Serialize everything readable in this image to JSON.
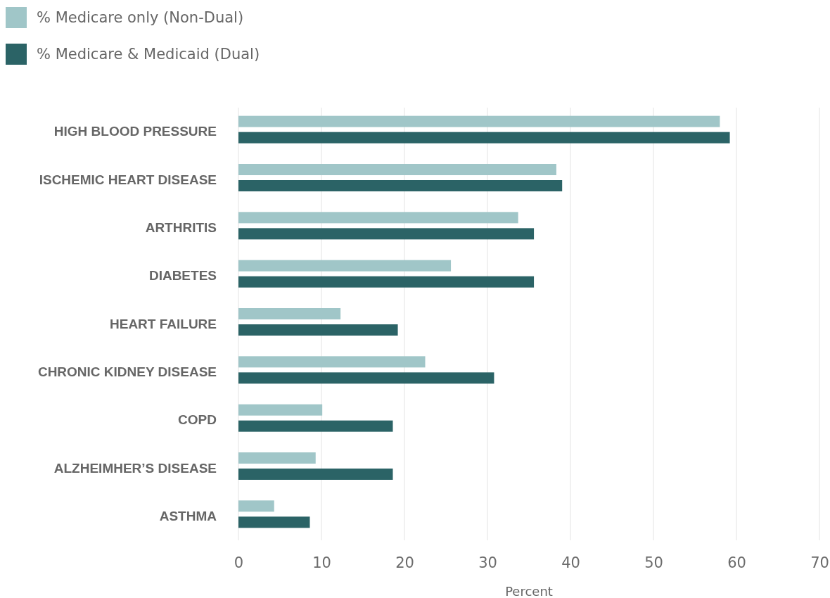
{
  "chart_data": {
    "type": "bar",
    "orientation": "horizontal",
    "xlabel": "Percent",
    "categories": [
      "HIGH BLOOD PRESSURE",
      "ISCHEMIC HEART DISEASE",
      "ARTHRITIS",
      "DIABETES",
      "HEART FAILURE",
      "CHRONIC KIDNEY DISEASE",
      "COPD",
      "ALZHEIMHER’S DISEASE",
      "ASTHMA"
    ],
    "series": [
      {
        "name": "% Medicare only (Non-Dual)",
        "color": "#a0c6c8",
        "values": [
          58,
          38.3,
          33.7,
          25.6,
          12.3,
          22.5,
          10.1,
          9.3,
          4.3
        ]
      },
      {
        "name": "% Medicare & Medicaid (Dual)",
        "color": "#2b6366",
        "values": [
          59.2,
          39,
          35.6,
          35.6,
          19.2,
          30.8,
          18.6,
          18.6,
          8.6
        ]
      }
    ],
    "xlim": [
      0,
      70
    ],
    "xticks": [
      0,
      10,
      20,
      30,
      40,
      50,
      60,
      70
    ],
    "grid": "x",
    "legend": "top left"
  }
}
